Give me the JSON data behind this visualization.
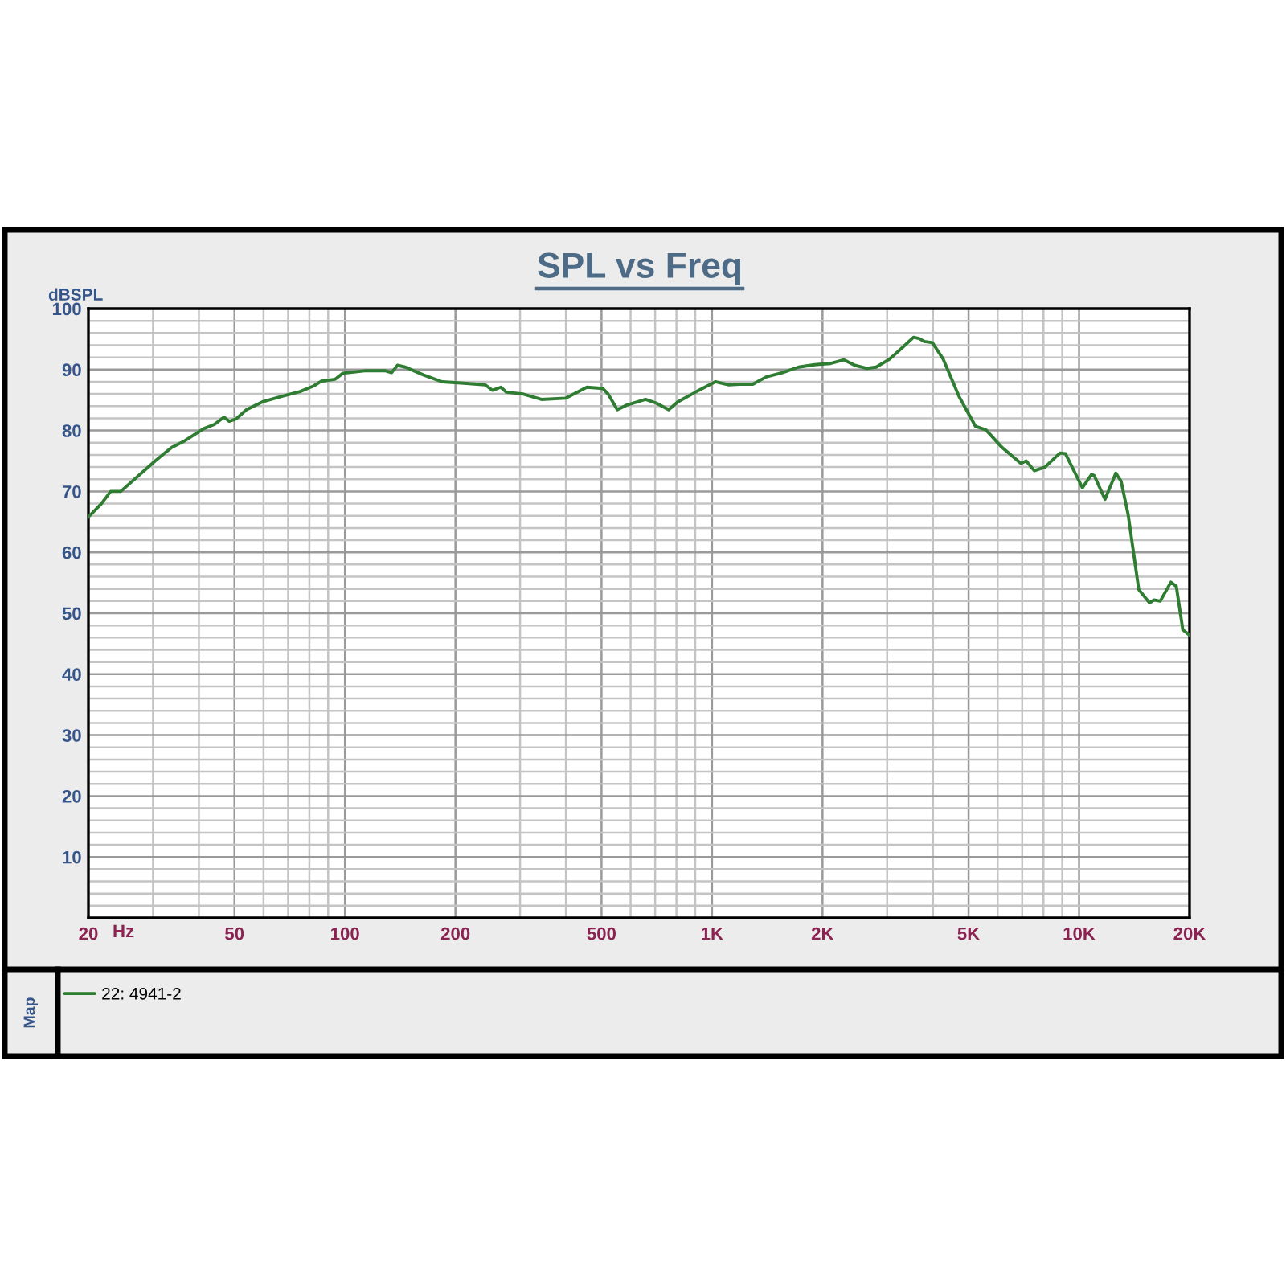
{
  "chart_data": {
    "type": "line",
    "title": "SPL vs Freq",
    "xlabel": "Hz",
    "ylabel": "dBSPL",
    "annotations": [
      "Map"
    ],
    "log": "x",
    "grid": true,
    "legend": "bottom",
    "xlim": [
      20,
      20000
    ],
    "ylim": [
      0,
      100
    ],
    "xticks": [
      20,
      {
        "value": 30,
        "label": null
      },
      {
        "value": 40,
        "label": null
      },
      50,
      {
        "value": 60,
        "label": null
      },
      {
        "value": 70,
        "label": null
      },
      {
        "value": 80,
        "label": null
      },
      {
        "value": 90,
        "label": null
      },
      100,
      200,
      {
        "value": 300,
        "label": null
      },
      {
        "value": 400,
        "label": null
      },
      500,
      {
        "value": 600,
        "label": null
      },
      {
        "value": 700,
        "label": null
      },
      {
        "value": 800,
        "label": null
      },
      {
        "value": 900,
        "label": null
      },
      {
        "value": 1000,
        "label": "1K"
      },
      {
        "value": 2000,
        "label": "2K"
      },
      {
        "value": 3000,
        "label": null
      },
      {
        "value": 4000,
        "label": null
      },
      {
        "value": 5000,
        "label": "5K"
      },
      {
        "value": 6000,
        "label": null
      },
      {
        "value": 7000,
        "label": null
      },
      {
        "value": 8000,
        "label": null
      },
      {
        "value": 9000,
        "label": null
      },
      {
        "value": 10000,
        "label": "10K"
      },
      {
        "value": 20000,
        "label": "20K"
      }
    ],
    "yticks": [
      {
        "value": 0,
        "label": null
      },
      {
        "value": 2,
        "label": null
      },
      {
        "value": 4,
        "label": null
      },
      {
        "value": 6,
        "label": null
      },
      {
        "value": 8,
        "label": null
      },
      10,
      {
        "value": 12,
        "label": null
      },
      {
        "value": 14,
        "label": null
      },
      {
        "value": 16,
        "label": null
      },
      {
        "value": 18,
        "label": null
      },
      20,
      {
        "value": 22,
        "label": null
      },
      {
        "value": 24,
        "label": null
      },
      {
        "value": 26,
        "label": null
      },
      {
        "value": 28,
        "label": null
      },
      30,
      {
        "value": 32,
        "label": null
      },
      {
        "value": 34,
        "label": null
      },
      {
        "value": 36,
        "label": null
      },
      {
        "value": 38,
        "label": null
      },
      40,
      {
        "value": 42,
        "label": null
      },
      {
        "value": 44,
        "label": null
      },
      {
        "value": 46,
        "label": null
      },
      {
        "value": 48,
        "label": null
      },
      50,
      {
        "value": 52,
        "label": null
      },
      {
        "value": 54,
        "label": null
      },
      {
        "value": 56,
        "label": null
      },
      {
        "value": 58,
        "label": null
      },
      60,
      {
        "value": 62,
        "label": null
      },
      {
        "value": 64,
        "label": null
      },
      {
        "value": 66,
        "label": null
      },
      {
        "value": 68,
        "label": null
      },
      70,
      {
        "value": 72,
        "label": null
      },
      {
        "value": 74,
        "label": null
      },
      {
        "value": 76,
        "label": null
      },
      {
        "value": 78,
        "label": null
      },
      80,
      {
        "value": 82,
        "label": null
      },
      {
        "value": 84,
        "label": null
      },
      {
        "value": 86,
        "label": null
      },
      {
        "value": 88,
        "label": null
      },
      90,
      {
        "value": 92,
        "label": null
      },
      {
        "value": 94,
        "label": null
      },
      {
        "value": 96,
        "label": null
      },
      {
        "value": 98,
        "label": null
      },
      100
    ],
    "x": [
      20,
      21.7,
      23,
      24.5,
      30.4,
      33.7,
      36.6,
      41.2,
      44.1,
      46.8,
      48.4,
      50.5,
      53.9,
      59.6,
      68.2,
      75.5,
      82.1,
      86.3,
      93.9,
      98.7,
      113,
      129,
      134,
      139,
      146,
      164,
      184,
      207,
      241,
      252,
      266,
      275,
      305,
      343,
      399,
      456,
      504,
      521,
      552,
      587,
      659,
      705,
      762,
      807,
      908,
      1021,
      1111,
      1188,
      1292,
      1406,
      1556,
      1721,
      1903,
      2105,
      2289,
      2449,
      2644,
      2800,
      3045,
      3314,
      3541,
      3664,
      3792,
      3988,
      4266,
      4718,
      5220,
      5578,
      6172,
      6942,
      7178,
      7552,
      8077,
      8872,
      9180,
      10212,
      10822,
      11000,
      11768,
      12590,
      13014,
      13606,
      14544,
      15561,
      16000,
      16640,
      17790,
      18410,
      19172,
      20000
    ],
    "series": [
      {
        "name": "22: 4941-2",
        "color": "#2f7d32",
        "values": [
          65.8,
          68.0,
          70.0,
          70.0,
          75.0,
          77.2,
          78.3,
          80.3,
          81.0,
          82.2,
          81.5,
          81.9,
          83.4,
          84.7,
          85.7,
          86.4,
          87.3,
          88.1,
          88.4,
          89.4,
          89.8,
          89.8,
          89.5,
          90.7,
          90.4,
          89.1,
          88.0,
          87.8,
          87.5,
          86.6,
          87.1,
          86.3,
          86.0,
          85.1,
          85.3,
          87.1,
          86.9,
          86.0,
          83.4,
          84.2,
          85.1,
          84.5,
          83.4,
          84.7,
          86.4,
          88.0,
          87.5,
          87.6,
          87.6,
          88.8,
          89.5,
          90.4,
          90.8,
          91.0,
          91.6,
          90.7,
          90.2,
          90.4,
          91.7,
          93.7,
          95.3,
          95.1,
          94.6,
          94.4,
          91.7,
          85.5,
          80.7,
          80.1,
          77.2,
          74.6,
          75.0,
          73.4,
          74.0,
          76.3,
          76.2,
          70.6,
          72.8,
          72.6,
          68.7,
          73.0,
          71.7,
          66.2,
          53.9,
          51.7,
          52.2,
          52.0,
          55.1,
          54.4,
          47.3,
          46.4
        ]
      }
    ]
  }
}
